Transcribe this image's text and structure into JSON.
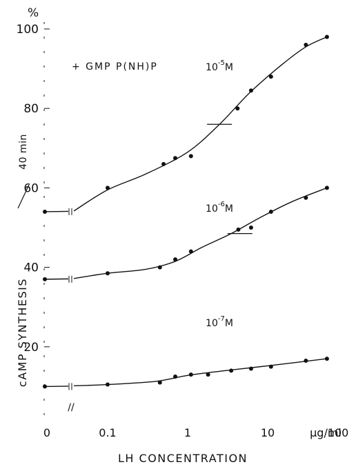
{
  "chart_data": {
    "type": "line",
    "title": "",
    "xlabel": "LH CONCENTRATION",
    "ylabel_parts": {
      "main": "cAMP SYNTHESIS",
      "unit_num": "%",
      "unit_den": "40 min"
    },
    "y_unit_symbol": "%",
    "ylim": [
      0,
      100
    ],
    "yticks": [
      "100",
      "80",
      "60",
      "40",
      "20"
    ],
    "x_scale": "log",
    "x_tick_labels": [
      "0",
      "0.1",
      "1",
      "10",
      "100"
    ],
    "x_unit": "μg/ml",
    "annotation": "+ GMP P(NH)P",
    "series": [
      {
        "name": "10⁻⁵M",
        "label_base": "10",
        "label_exp": "-5",
        "label_unit": "M",
        "zero_value": 54,
        "points": [
          {
            "x": 0.1,
            "y": 60
          },
          {
            "x": 0.5,
            "y": 66
          },
          {
            "x": 0.7,
            "y": 67.5
          },
          {
            "x": 1.1,
            "y": 68
          },
          {
            "x": 4.2,
            "y": 80
          },
          {
            "x": 6.2,
            "y": 84.5
          },
          {
            "x": 11,
            "y": 88
          },
          {
            "x": 30,
            "y": 96
          },
          {
            "x": 55,
            "y": 98
          }
        ],
        "curve": [
          {
            "x": 0.1,
            "y": 59.5
          },
          {
            "x": 0.3,
            "y": 63.5
          },
          {
            "x": 1,
            "y": 69
          },
          {
            "x": 2.5,
            "y": 76
          },
          {
            "x": 6,
            "y": 84
          },
          {
            "x": 15,
            "y": 91
          },
          {
            "x": 30,
            "y": 95.5
          },
          {
            "x": 55,
            "y": 98
          }
        ]
      },
      {
        "name": "10⁻⁶M",
        "label_base": "10",
        "label_exp": "-6",
        "label_unit": "M",
        "zero_value": 37,
        "points": [
          {
            "x": 0.1,
            "y": 38.5
          },
          {
            "x": 0.45,
            "y": 40
          },
          {
            "x": 0.7,
            "y": 42
          },
          {
            "x": 1.1,
            "y": 44
          },
          {
            "x": 4.3,
            "y": 49.5
          },
          {
            "x": 6.2,
            "y": 50
          },
          {
            "x": 11,
            "y": 54
          },
          {
            "x": 30,
            "y": 57.5
          },
          {
            "x": 55,
            "y": 60
          }
        ],
        "curve": [
          {
            "x": 0.1,
            "y": 38.5
          },
          {
            "x": 0.3,
            "y": 39.5
          },
          {
            "x": 0.7,
            "y": 41.5
          },
          {
            "x": 1.5,
            "y": 45
          },
          {
            "x": 3.5,
            "y": 48.5
          },
          {
            "x": 8,
            "y": 52.5
          },
          {
            "x": 20,
            "y": 56.5
          },
          {
            "x": 55,
            "y": 60
          }
        ]
      },
      {
        "name": "10⁻⁷M",
        "label_base": "10",
        "label_exp": "-7",
        "label_unit": "M",
        "zero_value": 10,
        "points": [
          {
            "x": 0.1,
            "y": 10.5
          },
          {
            "x": 0.45,
            "y": 11
          },
          {
            "x": 0.7,
            "y": 12.5
          },
          {
            "x": 1.1,
            "y": 13
          },
          {
            "x": 1.8,
            "y": 13
          },
          {
            "x": 3.5,
            "y": 14
          },
          {
            "x": 6.2,
            "y": 14.5
          },
          {
            "x": 11,
            "y": 15
          },
          {
            "x": 30,
            "y": 16.5
          },
          {
            "x": 55,
            "y": 17
          }
        ],
        "curve": [
          {
            "x": 0.1,
            "y": 10.5
          },
          {
            "x": 0.4,
            "y": 11.3
          },
          {
            "x": 1,
            "y": 12.8
          },
          {
            "x": 3,
            "y": 14
          },
          {
            "x": 10,
            "y": 15.2
          },
          {
            "x": 55,
            "y": 17
          }
        ]
      }
    ],
    "half_max_marks": [
      {
        "x": 2.5,
        "y": 76
      },
      {
        "x": 4.5,
        "y": 48.5
      }
    ]
  }
}
